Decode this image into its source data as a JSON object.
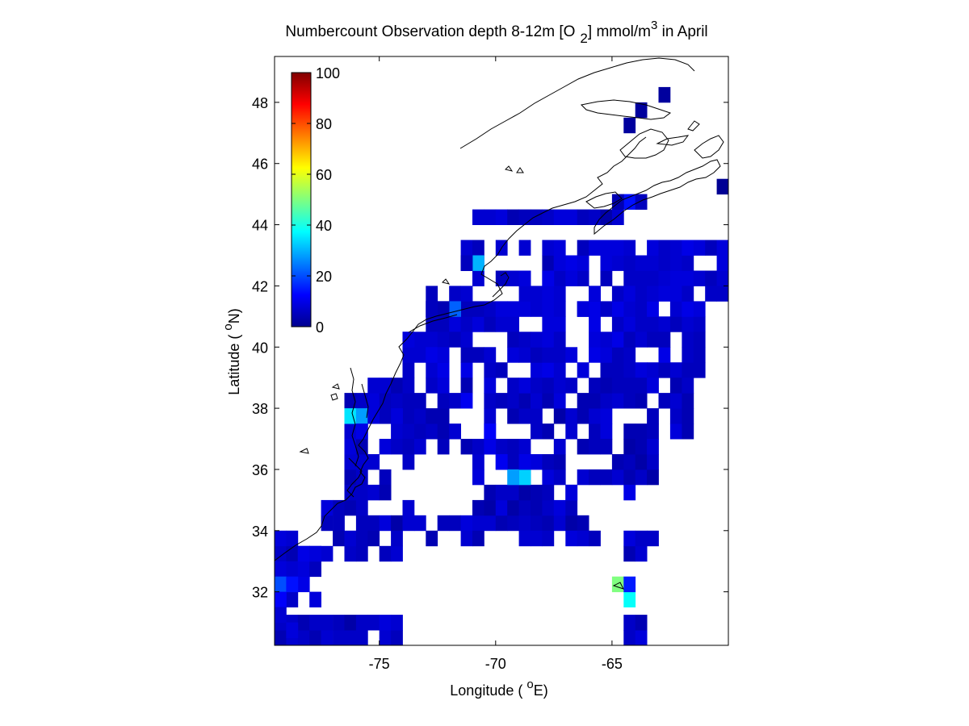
{
  "title": {
    "prefix": "Numbercount Observation depth 8-12m [O",
    "sub": "2",
    "middle": "] mmol/m",
    "sup": "3",
    "suffix": " in April"
  },
  "xlabel": {
    "prefix": "Longitude ( ",
    "sup": "o",
    "suffix": "E)"
  },
  "ylabel": {
    "prefix": "Latitude ( ",
    "sup": "o",
    "suffix": "N)"
  },
  "chart_data": {
    "type": "heatmap",
    "xlim": [
      -79.5,
      -60.0
    ],
    "ylim": [
      30.25,
      49.5
    ],
    "xticks": [
      -75,
      -70,
      -65
    ],
    "xtick_labels": [
      "-75",
      "-70",
      "-65"
    ],
    "yticks": [
      32,
      34,
      36,
      38,
      40,
      42,
      44,
      46,
      48
    ],
    "ytick_labels": [
      "32",
      "34",
      "36",
      "38",
      "40",
      "42",
      "44",
      "46",
      "48"
    ],
    "colorbar": {
      "colormap": "jet",
      "range": [
        0,
        100
      ],
      "ticks": [
        0,
        20,
        40,
        60,
        80,
        100
      ],
      "tick_labels": [
        "0",
        "20",
        "40",
        "60",
        "80",
        "100"
      ],
      "placement": "top-left inside axes"
    },
    "grid": false,
    "cell_size_deg": 0.5,
    "cells_note": "value per 0.5deg cell; empty cells have no observations",
    "cells": [
      [
        -62.75,
        48.25,
        3
      ],
      [
        -63.75,
        47.75,
        3
      ],
      [
        -64.25,
        47.25,
        3
      ],
      [
        -60.25,
        45.25,
        2
      ],
      [
        -64.25,
        44.75,
        14
      ],
      [
        -63.75,
        44.75,
        6
      ],
      [
        -64.75,
        44.75,
        5
      ],
      [
        -71.75,
        41.25,
        22
      ],
      [
        -72.25,
        41.25,
        5
      ],
      [
        -72.75,
        41.25,
        6
      ],
      [
        -70.75,
        42.75,
        30
      ],
      [
        -71.25,
        42.75,
        6
      ],
      [
        -76.25,
        37.75,
        35
      ],
      [
        -75.75,
        37.75,
        28
      ],
      [
        -68.75,
        35.75,
        33
      ],
      [
        -69.25,
        35.75,
        28
      ],
      [
        -64.75,
        32.25,
        50
      ],
      [
        -64.25,
        31.75,
        38
      ],
      [
        -64.25,
        32.25,
        15
      ],
      [
        -79.25,
        32.25,
        20
      ],
      [
        -78.75,
        32.25,
        14
      ],
      [
        -79.25,
        31.75,
        12
      ],
      [
        -78.25,
        33.25,
        10
      ],
      [
        -77.75,
        33.25,
        9
      ],
      [
        -79.25,
        31.25,
        8
      ],
      [
        -75.25,
        37.75,
        9
      ],
      [
        -75.75,
        37.25,
        10
      ],
      [
        -74.25,
        37.75,
        9
      ],
      [
        -73.75,
        40.25,
        9
      ],
      [
        -72.75,
        39.75,
        10
      ],
      [
        -72.25,
        39.75,
        9
      ],
      [
        -71.25,
        38.25,
        11
      ],
      [
        -70.25,
        37.25,
        12
      ],
      [
        -70.25,
        36.75,
        10
      ],
      [
        -69.75,
        36.25,
        11
      ],
      [
        -68.75,
        36.25,
        10
      ],
      [
        -68.75,
        42.25,
        9
      ],
      [
        -67.75,
        42.25,
        10
      ],
      [
        -66.75,
        42.25,
        9
      ],
      [
        -67.25,
        42.75,
        9
      ],
      [
        -66.25,
        41.25,
        9
      ],
      [
        -65.75,
        41.75,
        9
      ],
      [
        -64.25,
        35.25,
        10
      ],
      [
        -66.75,
        35.25,
        9
      ],
      [
        -78.75,
        30.75,
        9
      ]
    ],
    "regions": [
      {
        "lon": [
          -71.0,
          -64.5
        ],
        "lat": [
          44.0,
          44.5
        ],
        "value": 3
      },
      {
        "lon": [
          -71.5,
          -60.0
        ],
        "lat": [
          42.0,
          43.5
        ],
        "value": 4
      },
      {
        "lon": [
          -73.0,
          -60.0
        ],
        "lat": [
          40.5,
          42.0
        ],
        "value": 4
      },
      {
        "lon": [
          -74.0,
          -60.0
        ],
        "lat": [
          39.0,
          40.5
        ],
        "value": 4
      },
      {
        "lon": [
          -76.5,
          -61.5
        ],
        "lat": [
          37.0,
          39.0
        ],
        "value": 3
      },
      {
        "lon": [
          -76.5,
          -63.0
        ],
        "lat": [
          35.5,
          37.0
        ],
        "value": 3
      },
      {
        "lon": [
          -77.5,
          -66.0
        ],
        "lat": [
          34.0,
          35.5
        ],
        "value": 3
      },
      {
        "lon": [
          -79.5,
          -62.0
        ],
        "lat": [
          33.0,
          34.0
        ],
        "value": 3
      },
      {
        "lon": [
          -79.5,
          -77.5
        ],
        "lat": [
          31.5,
          33.0
        ],
        "value": 5
      },
      {
        "lon": [
          -79.5,
          -63.5
        ],
        "lat": [
          30.25,
          31.5
        ],
        "value": 3
      }
    ],
    "empty_regions": [
      {
        "lon": [
          -74.0,
          -64.5
        ],
        "lat": [
          30.25,
          33.5
        ]
      },
      {
        "lon": [
          -62.5,
          -60.0
        ],
        "lat": [
          30.25,
          34.5
        ]
      },
      {
        "lon": [
          -73.5,
          -71.0
        ],
        "lat": [
          34.5,
          36.5
        ]
      },
      {
        "lon": [
          -71.5,
          -70.5
        ],
        "lat": [
          37.0,
          38.5
        ]
      },
      {
        "lon": [
          -67.0,
          -66.5
        ],
        "lat": [
          40.0,
          41.0
        ]
      },
      {
        "lon": [
          -66.5,
          -65.5
        ],
        "lat": [
          36.0,
          36.5
        ]
      },
      {
        "lon": [
          -61.0,
          -60.0
        ],
        "lat": [
          36.5,
          41.5
        ]
      }
    ]
  },
  "colors": {
    "axes_frame": "#000000",
    "coastline": "#000000",
    "background": "#ffffff"
  }
}
